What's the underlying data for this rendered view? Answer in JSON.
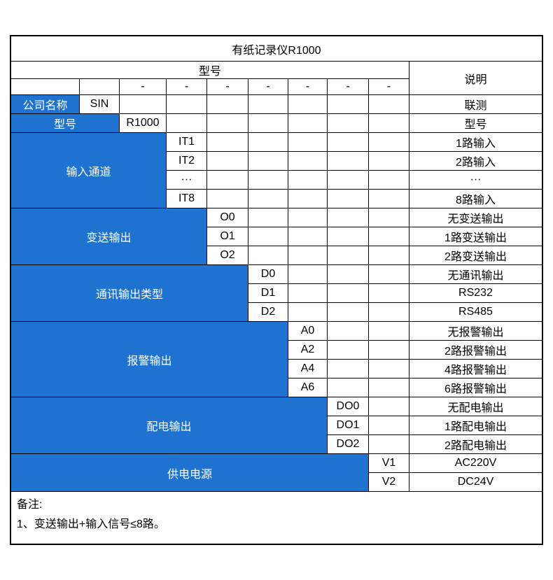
{
  "title": "有纸记录仪R1000",
  "header": {
    "model_label": "型号",
    "desc_label": "说明",
    "dashes": [
      "-",
      "-",
      "-",
      "-",
      "-",
      "-",
      "-"
    ]
  },
  "groups": [
    {
      "label": "公司名称",
      "colspan": 1,
      "items": [
        {
          "code": "SIN",
          "desc": "联测"
        }
      ]
    },
    {
      "label": "型号",
      "colspan": 2,
      "items": [
        {
          "code": "R1000",
          "desc": "型号"
        }
      ]
    },
    {
      "label": "输入通道",
      "colspan": 3,
      "items": [
        {
          "code": "IT1",
          "desc": "1路输入"
        },
        {
          "code": "IT2",
          "desc": "2路输入"
        },
        {
          "code": "···",
          "desc": "···"
        },
        {
          "code": "IT8",
          "desc": "8路输入"
        }
      ]
    },
    {
      "label": "变送输出",
      "colspan": 4,
      "items": [
        {
          "code": "O0",
          "desc": "无变送输出"
        },
        {
          "code": "O1",
          "desc": "1路变送输出"
        },
        {
          "code": "O2",
          "desc": "2路变送输出"
        }
      ]
    },
    {
      "label": "通讯输出类型",
      "colspan": 5,
      "items": [
        {
          "code": "D0",
          "desc": "无通讯输出"
        },
        {
          "code": "D1",
          "desc": "RS232"
        },
        {
          "code": "D2",
          "desc": "RS485"
        }
      ]
    },
    {
      "label": "报警输出",
      "colspan": 6,
      "items": [
        {
          "code": "A0",
          "desc": "无报警输出"
        },
        {
          "code": "A2",
          "desc": "2路报警输出"
        },
        {
          "code": "A4",
          "desc": "4路报警输出"
        },
        {
          "code": "A6",
          "desc": "6路报警输出"
        }
      ]
    },
    {
      "label": "配电输出",
      "colspan": 7,
      "items": [
        {
          "code": "DO0",
          "desc": "无配电输出"
        },
        {
          "code": "DO1",
          "desc": "1路配电输出"
        },
        {
          "code": "DO2",
          "desc": "2路配电输出"
        }
      ]
    },
    {
      "label": "供电电源",
      "colspan": 8,
      "items": [
        {
          "code": "V1",
          "desc": "AC220V"
        },
        {
          "code": "V2",
          "desc": "DC24V"
        }
      ]
    }
  ],
  "remark": {
    "line1": "备注:",
    "line2": "1、变送输出+输入信号≤8路。"
  },
  "colors": {
    "accent_blue": "#1E73D1",
    "border_black": "#000000",
    "cell_white": "#FFFFFF"
  }
}
